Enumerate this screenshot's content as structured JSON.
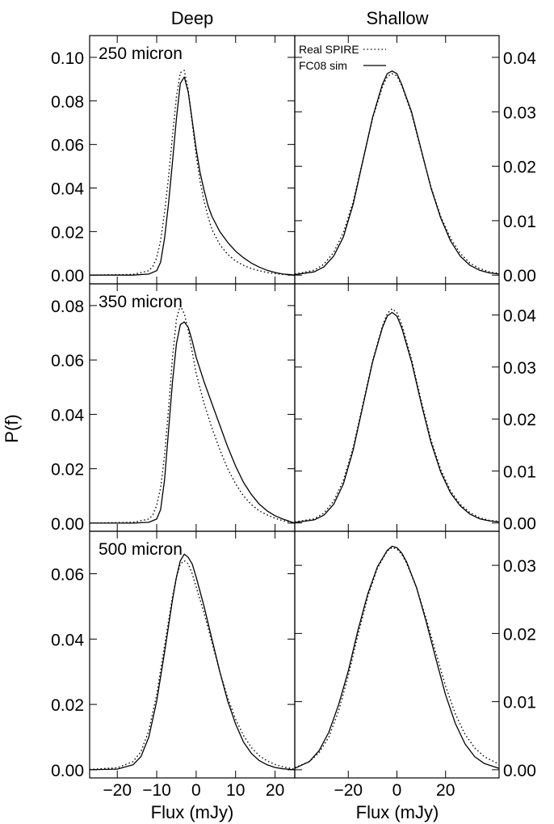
{
  "figure": {
    "column_titles": [
      "Deep",
      "Shallow"
    ],
    "ylabel": "P(f)",
    "xlabel": "Flux (mJy)"
  },
  "chart_data": {
    "type": "line",
    "legend": {
      "placement": "top-center",
      "entries": [
        {
          "name": "Real SPIRE",
          "style": "dotted"
        },
        {
          "name": "FC08 sim",
          "style": "solid"
        }
      ]
    },
    "grid": false,
    "panels": [
      {
        "band": "250 micron",
        "field": "Deep",
        "xlim": [
          -27,
          25
        ],
        "ylim": [
          -0.004,
          0.11
        ],
        "xticks": [
          -20,
          -10,
          0,
          10,
          20
        ],
        "yticks": [
          0.0,
          0.02,
          0.04,
          0.06,
          0.08,
          0.1
        ],
        "ytick_labels": [
          "0.00",
          "0.02",
          "0.04",
          "0.06",
          "0.08",
          "0.10"
        ],
        "series": [
          {
            "name": "FC08 sim",
            "style": "solid",
            "x": [
              -27,
              -16,
              -12,
              -10,
              -9,
              -8,
              -7,
              -6,
              -5,
              -4,
              -3,
              -2,
              -1,
              0,
              1,
              2,
              3,
              4,
              6,
              8,
              10,
              12,
              14,
              16,
              18,
              20,
              22,
              24,
              25
            ],
            "y": [
              0.0,
              0.0,
              0.0005,
              0.002,
              0.006,
              0.017,
              0.033,
              0.052,
              0.072,
              0.088,
              0.091,
              0.084,
              0.071,
              0.058,
              0.047,
              0.039,
              0.032,
              0.027,
              0.02,
              0.015,
              0.011,
              0.008,
              0.0055,
              0.0037,
              0.0022,
              0.0012,
              0.0005,
              0.0002,
              0.0
            ]
          },
          {
            "name": "Real SPIRE",
            "style": "dotted",
            "x": [
              -27,
              -16,
              -12,
              -11,
              -10,
              -9,
              -8,
              -7,
              -6,
              -5,
              -4,
              -3,
              -2,
              -1,
              0,
              1,
              2,
              3,
              4,
              6,
              8,
              10,
              12,
              14,
              16,
              18,
              20,
              22,
              24,
              25
            ],
            "y": [
              0.0,
              0.0003,
              0.002,
              0.004,
              0.008,
              0.016,
              0.029,
              0.045,
              0.064,
              0.082,
              0.093,
              0.094,
              0.085,
              0.07,
              0.055,
              0.043,
              0.034,
              0.027,
              0.021,
              0.014,
              0.0095,
              0.0065,
              0.0045,
              0.003,
              0.002,
              0.0012,
              0.0007,
              0.0003,
              0.0001,
              0.0
            ]
          }
        ]
      },
      {
        "band": "250 micron",
        "field": "Shallow",
        "xlim": [
          -42,
          42
        ],
        "ylim": [
          -0.0016,
          0.044
        ],
        "xticks": [
          -20,
          0,
          20
        ],
        "yticks": [
          0.0,
          0.01,
          0.02,
          0.03,
          0.04
        ],
        "ytick_labels": [
          "0.00",
          "0.01",
          "0.02",
          "0.03",
          "0.04"
        ],
        "series": [
          {
            "name": "FC08 sim",
            "style": "solid",
            "x": [
              -42,
              -34,
              -30,
              -26,
              -22,
              -18,
              -14,
              -10,
              -6,
              -4,
              -2,
              0,
              2,
              6,
              10,
              14,
              18,
              22,
              26,
              30,
              34,
              38,
              42
            ],
            "y": [
              0.0001,
              0.0006,
              0.0015,
              0.0035,
              0.007,
              0.013,
              0.021,
              0.029,
              0.035,
              0.037,
              0.0375,
              0.037,
              0.035,
              0.03,
              0.023,
              0.016,
              0.0105,
              0.0063,
              0.0035,
              0.0018,
              0.0009,
              0.0004,
              0.0002
            ]
          },
          {
            "name": "Real SPIRE",
            "style": "dotted",
            "x": [
              -42,
              -34,
              -30,
              -26,
              -22,
              -18,
              -14,
              -10,
              -6,
              -4,
              -2,
              0,
              2,
              6,
              10,
              14,
              18,
              22,
              26,
              30,
              34,
              38,
              42
            ],
            "y": [
              0.0002,
              0.0009,
              0.002,
              0.0042,
              0.0078,
              0.0135,
              0.021,
              0.0288,
              0.0345,
              0.0365,
              0.037,
              0.0366,
              0.0348,
              0.0297,
              0.0228,
              0.0162,
              0.0108,
              0.0068,
              0.004,
              0.0022,
              0.0012,
              0.0006,
              0.0003
            ]
          }
        ]
      },
      {
        "band": "350 micron",
        "field": "Deep",
        "xlim": [
          -27,
          25
        ],
        "ylim": [
          -0.003,
          0.088
        ],
        "xticks": [
          -20,
          -10,
          0,
          10,
          20
        ],
        "yticks": [
          0.0,
          0.02,
          0.04,
          0.06,
          0.08
        ],
        "ytick_labels": [
          "0.00",
          "0.02",
          "0.04",
          "0.06",
          "0.08"
        ],
        "series": [
          {
            "name": "FC08 sim",
            "style": "solid",
            "x": [
              -27,
              -16,
              -12,
              -10,
              -9,
              -8,
              -7,
              -6,
              -5,
              -4,
              -3,
              -2,
              -1,
              0,
              2,
              4,
              6,
              8,
              10,
              12,
              14,
              16,
              18,
              20,
              22,
              24,
              25
            ],
            "y": [
              0.0,
              0.0,
              0.0003,
              0.0015,
              0.005,
              0.016,
              0.034,
              0.052,
              0.066,
              0.073,
              0.074,
              0.072,
              0.067,
              0.061,
              0.052,
              0.044,
              0.036,
              0.028,
              0.021,
              0.015,
              0.0105,
              0.007,
              0.0045,
              0.0027,
              0.0015,
              0.0005,
              0.0
            ]
          },
          {
            "name": "Real SPIRE",
            "style": "dotted",
            "x": [
              -27,
              -16,
              -12,
              -11,
              -10,
              -9,
              -8,
              -7,
              -6,
              -5,
              -4,
              -3,
              -2,
              -1,
              0,
              2,
              4,
              6,
              8,
              10,
              12,
              14,
              16,
              18,
              20,
              22,
              24,
              25
            ],
            "y": [
              0.0,
              0.0003,
              0.0015,
              0.003,
              0.0065,
              0.013,
              0.025,
              0.042,
              0.061,
              0.075,
              0.08,
              0.077,
              0.071,
              0.063,
              0.055,
              0.044,
              0.035,
              0.027,
              0.02,
              0.0145,
              0.01,
              0.0068,
              0.0045,
              0.003,
              0.0018,
              0.0009,
              0.0003,
              0.0
            ]
          }
        ]
      },
      {
        "band": "350 micron",
        "field": "Shallow",
        "xlim": [
          -42,
          42
        ],
        "ylim": [
          -0.0016,
          0.046
        ],
        "xticks": [
          -20,
          0,
          20
        ],
        "yticks": [
          0.0,
          0.01,
          0.02,
          0.03,
          0.04
        ],
        "ytick_labels": [
          "0.00",
          "0.01",
          "0.02",
          "0.03",
          "0.04"
        ],
        "series": [
          {
            "name": "FC08 sim",
            "style": "solid",
            "x": [
              -42,
              -34,
              -30,
              -26,
              -22,
              -18,
              -14,
              -10,
              -6,
              -4,
              -2,
              0,
              2,
              6,
              10,
              14,
              18,
              22,
              26,
              30,
              34,
              38,
              42
            ],
            "y": [
              0.0001,
              0.0006,
              0.0015,
              0.0036,
              0.0075,
              0.014,
              0.0225,
              0.031,
              0.0375,
              0.0398,
              0.0405,
              0.0398,
              0.0375,
              0.031,
              0.023,
              0.0155,
              0.0098,
              0.0058,
              0.0033,
              0.0017,
              0.0008,
              0.0004,
              0.0002
            ]
          },
          {
            "name": "Real SPIRE",
            "style": "dotted",
            "x": [
              -42,
              -34,
              -30,
              -26,
              -22,
              -18,
              -14,
              -10,
              -6,
              -4,
              -2,
              0,
              2,
              6,
              10,
              14,
              18,
              22,
              26,
              30,
              34,
              38,
              42
            ],
            "y": [
              0.0002,
              0.0008,
              0.0019,
              0.0042,
              0.0082,
              0.0145,
              0.0228,
              0.0312,
              0.0378,
              0.0403,
              0.0412,
              0.0405,
              0.0382,
              0.0315,
              0.0235,
              0.016,
              0.0103,
              0.0062,
              0.0036,
              0.002,
              0.001,
              0.0005,
              0.0003
            ]
          }
        ]
      },
      {
        "band": "500 micron",
        "field": "Deep",
        "xlim": [
          -27,
          25
        ],
        "ylim": [
          -0.0025,
          0.073
        ],
        "xticks": [
          -20,
          -10,
          0,
          10,
          20
        ],
        "yticks": [
          0.0,
          0.02,
          0.04,
          0.06
        ],
        "ytick_labels": [
          "0.00",
          "0.02",
          "0.04",
          "0.06"
        ],
        "series": [
          {
            "name": "FC08 sim",
            "style": "solid",
            "x": [
              -27,
              -20,
              -16,
              -14,
              -12,
              -10,
              -8,
              -6,
              -5,
              -4,
              -3,
              -2,
              -1,
              0,
              2,
              4,
              6,
              8,
              10,
              12,
              14,
              16,
              18,
              20,
              22,
              24,
              25
            ],
            "y": [
              0.0,
              0.0002,
              0.0015,
              0.004,
              0.01,
              0.021,
              0.036,
              0.052,
              0.059,
              0.064,
              0.066,
              0.065,
              0.063,
              0.059,
              0.05,
              0.04,
              0.03,
              0.021,
              0.014,
              0.0085,
              0.005,
              0.0028,
              0.0015,
              0.0007,
              0.0003,
              0.0001,
              0.0
            ]
          },
          {
            "name": "Real SPIRE",
            "style": "dotted",
            "x": [
              -27,
              -20,
              -16,
              -14,
              -12,
              -10,
              -8,
              -6,
              -5,
              -4,
              -3,
              -2,
              -1,
              0,
              2,
              4,
              6,
              8,
              10,
              12,
              14,
              16,
              18,
              20,
              22,
              24,
              25
            ],
            "y": [
              0.0001,
              0.0006,
              0.0025,
              0.0055,
              0.012,
              0.023,
              0.038,
              0.053,
              0.059,
              0.063,
              0.064,
              0.063,
              0.06,
              0.056,
              0.048,
              0.039,
              0.03,
              0.022,
              0.0155,
              0.0105,
              0.0068,
              0.0043,
              0.0027,
              0.0016,
              0.0009,
              0.0004,
              0.0002
            ]
          }
        ]
      },
      {
        "band": "500 micron",
        "field": "Shallow",
        "xlim": [
          -42,
          42
        ],
        "ylim": [
          -0.0012,
          0.035
        ],
        "xticks": [
          -20,
          0,
          20
        ],
        "yticks": [
          0.0,
          0.01,
          0.02,
          0.03
        ],
        "ytick_labels": [
          "0.00",
          "0.01",
          "0.02",
          "0.03"
        ],
        "series": [
          {
            "name": "FC08 sim",
            "style": "solid",
            "x": [
              -42,
              -36,
              -32,
              -28,
              -24,
              -20,
              -16,
              -12,
              -8,
              -4,
              -2,
              0,
              2,
              4,
              8,
              12,
              16,
              20,
              24,
              28,
              32,
              36,
              42
            ],
            "y": [
              0.0002,
              0.0012,
              0.0028,
              0.0055,
              0.0095,
              0.0145,
              0.0205,
              0.0258,
              0.0298,
              0.0322,
              0.0328,
              0.0326,
              0.0318,
              0.0305,
              0.0268,
              0.0218,
              0.0163,
              0.011,
              0.0068,
              0.0038,
              0.0019,
              0.0009,
              0.0002
            ]
          },
          {
            "name": "Real SPIRE",
            "style": "dotted",
            "x": [
              -42,
              -36,
              -32,
              -28,
              -24,
              -20,
              -16,
              -12,
              -8,
              -4,
              -2,
              0,
              2,
              4,
              8,
              12,
              16,
              20,
              24,
              28,
              32,
              36,
              42
            ],
            "y": [
              0.0003,
              0.0012,
              0.0025,
              0.0048,
              0.0086,
              0.0138,
              0.0198,
              0.0254,
              0.0296,
              0.0321,
              0.0326,
              0.0324,
              0.0316,
              0.0303,
              0.0268,
              0.0222,
              0.0172,
              0.0123,
              0.0082,
              0.0052,
              0.0032,
              0.0019,
              0.0008
            ]
          }
        ]
      }
    ]
  }
}
